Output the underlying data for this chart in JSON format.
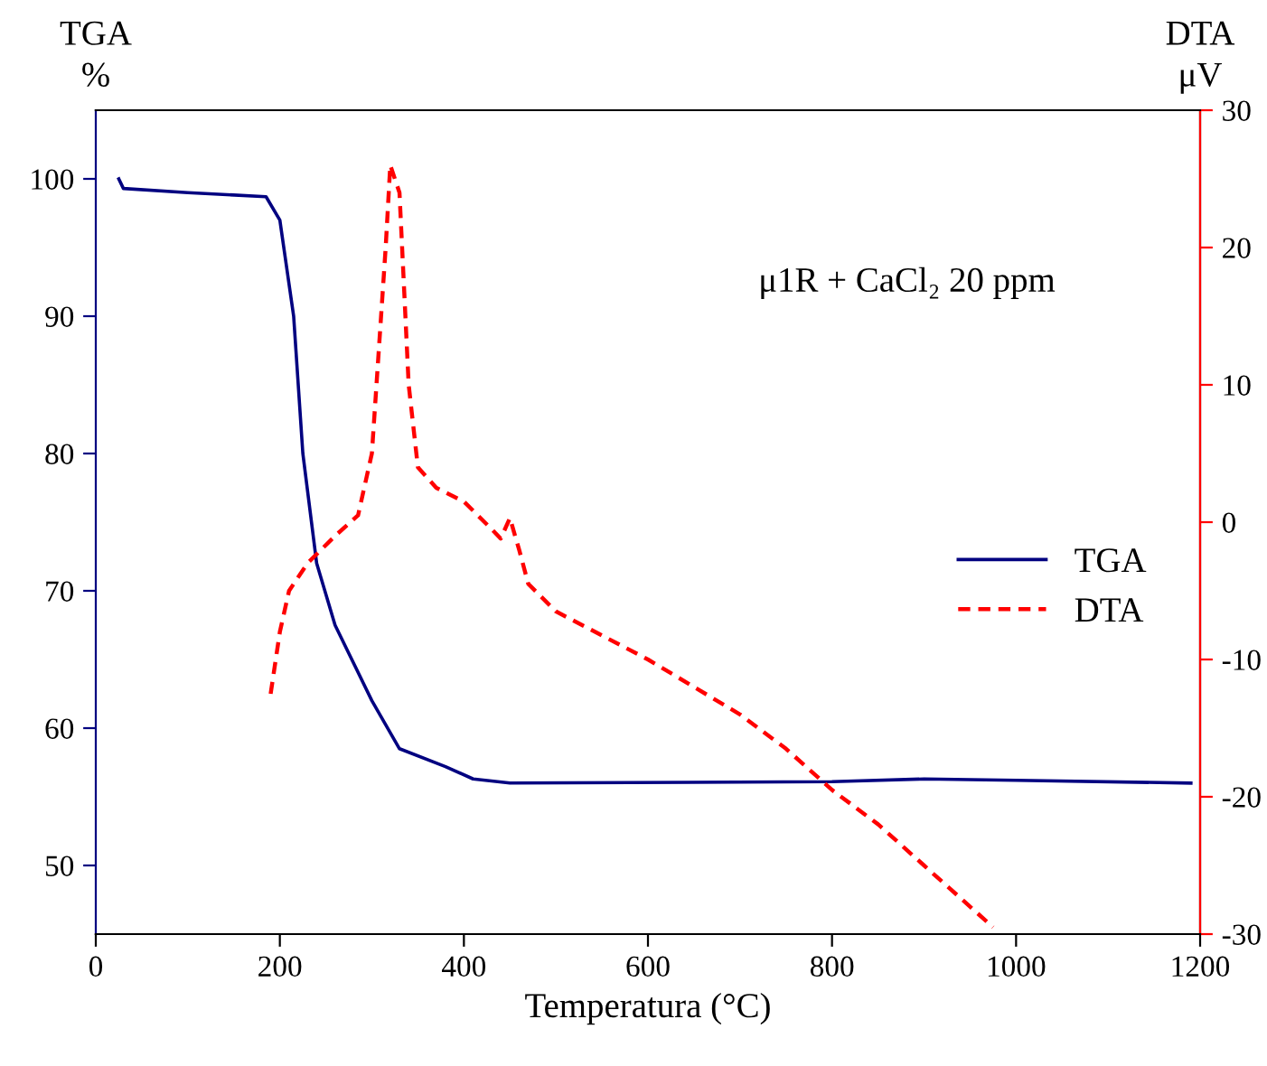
{
  "chart_data": {
    "type": "line",
    "xlabel": "Temperatura (°C)",
    "ylabel": "TGA\n%",
    "y2label": "DTA\nμV",
    "annotations": [
      "μ1R + CaCl₂ 20 ppm"
    ],
    "xlim": [
      0,
      1200
    ],
    "xticks": [
      0,
      200,
      400,
      600,
      800,
      1000,
      1200
    ],
    "ylim": [
      45,
      105
    ],
    "yticks": [
      50,
      60,
      70,
      80,
      90,
      100
    ],
    "y2lim": [
      -30,
      30
    ],
    "y2ticks": [
      {
        "value": -30,
        "label": "-30"
      },
      {
        "value": -20,
        "label": "-20"
      },
      {
        "value": -10,
        "label": "-10"
      },
      0,
      10,
      20,
      30
    ],
    "legend": "right",
    "grid": false,
    "series": [
      {
        "name": "TGA",
        "color": "#000080",
        "line_style": "solid",
        "x": [
          25,
          30,
          100,
          185,
          200,
          215,
          225,
          240,
          260,
          300,
          330,
          380,
          410,
          450,
          800,
          900,
          1000,
          1190
        ],
        "values": [
          100,
          99.3,
          99,
          98.7,
          97,
          90,
          80,
          72,
          67.5,
          62,
          58.5,
          57.2,
          56.3,
          56,
          56.1,
          56.3,
          56.2,
          56
        ]
      },
      {
        "name": "DTA",
        "color": "#ff0000",
        "line_style": "dashed",
        "axis": "y2",
        "x": [
          190,
          200,
          210,
          230,
          260,
          285,
          300,
          315,
          320,
          330,
          340,
          350,
          370,
          400,
          430,
          440,
          450,
          460,
          470,
          500,
          600,
          700,
          750,
          800,
          850,
          900,
          975
        ],
        "values": [
          -12.5,
          -8,
          -5,
          -3,
          -1,
          0.5,
          5,
          20,
          26,
          24,
          10,
          4,
          2.5,
          1.5,
          -0.5,
          -1.2,
          0.3,
          -2,
          -4.5,
          -6.5,
          -10,
          -14,
          -16.5,
          -19.5,
          -22,
          -25,
          -29.5
        ]
      }
    ]
  }
}
